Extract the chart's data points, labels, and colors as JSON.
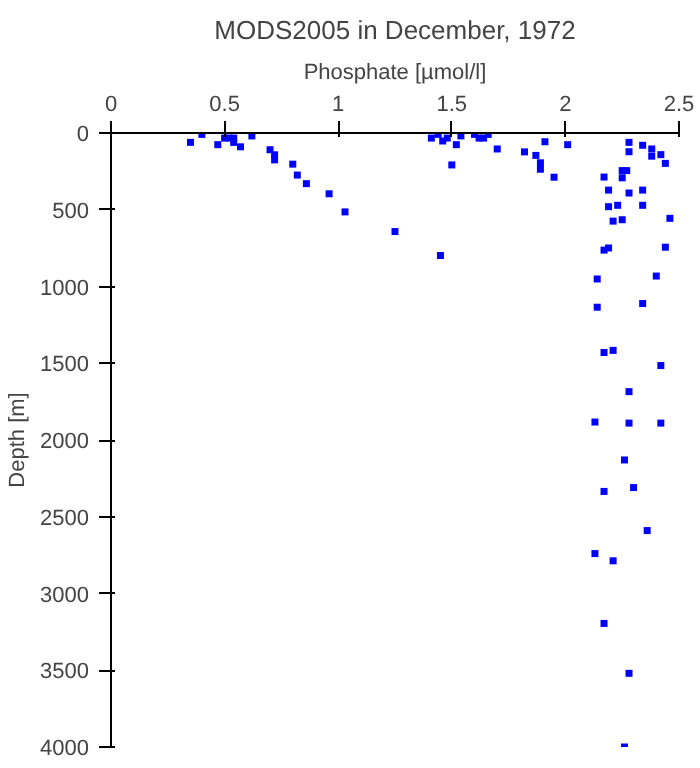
{
  "chart_data": {
    "type": "scatter",
    "title": "MODS2005 in December, 1972",
    "xlabel": "Phosphate [µmol/l]",
    "ylabel": "Depth [m]",
    "xlim": [
      0,
      2.5
    ],
    "xticks": [
      0,
      0.5,
      1,
      1.5,
      2,
      2.5
    ],
    "ylim": [
      4000,
      0
    ],
    "yticks": [
      0,
      500,
      1000,
      1500,
      2000,
      2500,
      3000,
      3500,
      4000
    ],
    "grid": false,
    "marker": "square",
    "series": [
      {
        "color": "#0000ff",
        "x": [
          0.35,
          0.4,
          0.47,
          0.5,
          0.52,
          0.54,
          0.54,
          0.57,
          0.62,
          0.7,
          0.72,
          0.72,
          0.8,
          0.82,
          0.86,
          0.96,
          1.03,
          1.25,
          1.45,
          1.41,
          1.44,
          1.46,
          1.48,
          1.5,
          1.52,
          1.54,
          1.6,
          1.62,
          1.64,
          1.66,
          1.7,
          1.82,
          1.87,
          1.89,
          1.89,
          1.91,
          1.95,
          2.01,
          2.28,
          2.28,
          2.34,
          2.38,
          2.38,
          2.42,
          2.44,
          2.17,
          2.25,
          2.27,
          2.25,
          2.19,
          2.28,
          2.34,
          2.19,
          2.23,
          2.34,
          2.21,
          2.25,
          2.46,
          2.17,
          2.19,
          2.44,
          2.4,
          2.14,
          2.34,
          2.14,
          2.17,
          2.21,
          2.42,
          2.28,
          2.13,
          2.28,
          2.42,
          2.26,
          2.17,
          2.3,
          2.36,
          2.13,
          2.21,
          2.17,
          2.28,
          2.26
        ],
        "values": [
          61,
          9,
          76,
          33,
          33,
          33,
          61,
          90,
          19,
          109,
          142,
          175,
          203,
          274,
          330,
          396,
          514,
          642,
          798,
          33,
          9,
          52,
          33,
          208,
          76,
          19,
          9,
          33,
          33,
          9,
          104,
          123,
          146,
          194,
          236,
          57,
          288,
          76,
          61,
          122,
          80,
          104,
          151,
          141,
          198,
          287,
          245,
          245,
          292,
          372,
          391,
          372,
          480,
          471,
          471,
          574,
          565,
          556,
          763,
          749,
          744,
          932,
          951,
          1111,
          1135,
          1430,
          1416,
          1515,
          1685,
          1883,
          1890,
          1890,
          2130,
          2335,
          2310,
          2590,
          2740,
          2787,
          3195,
          3520,
          4000
        ]
      }
    ]
  }
}
